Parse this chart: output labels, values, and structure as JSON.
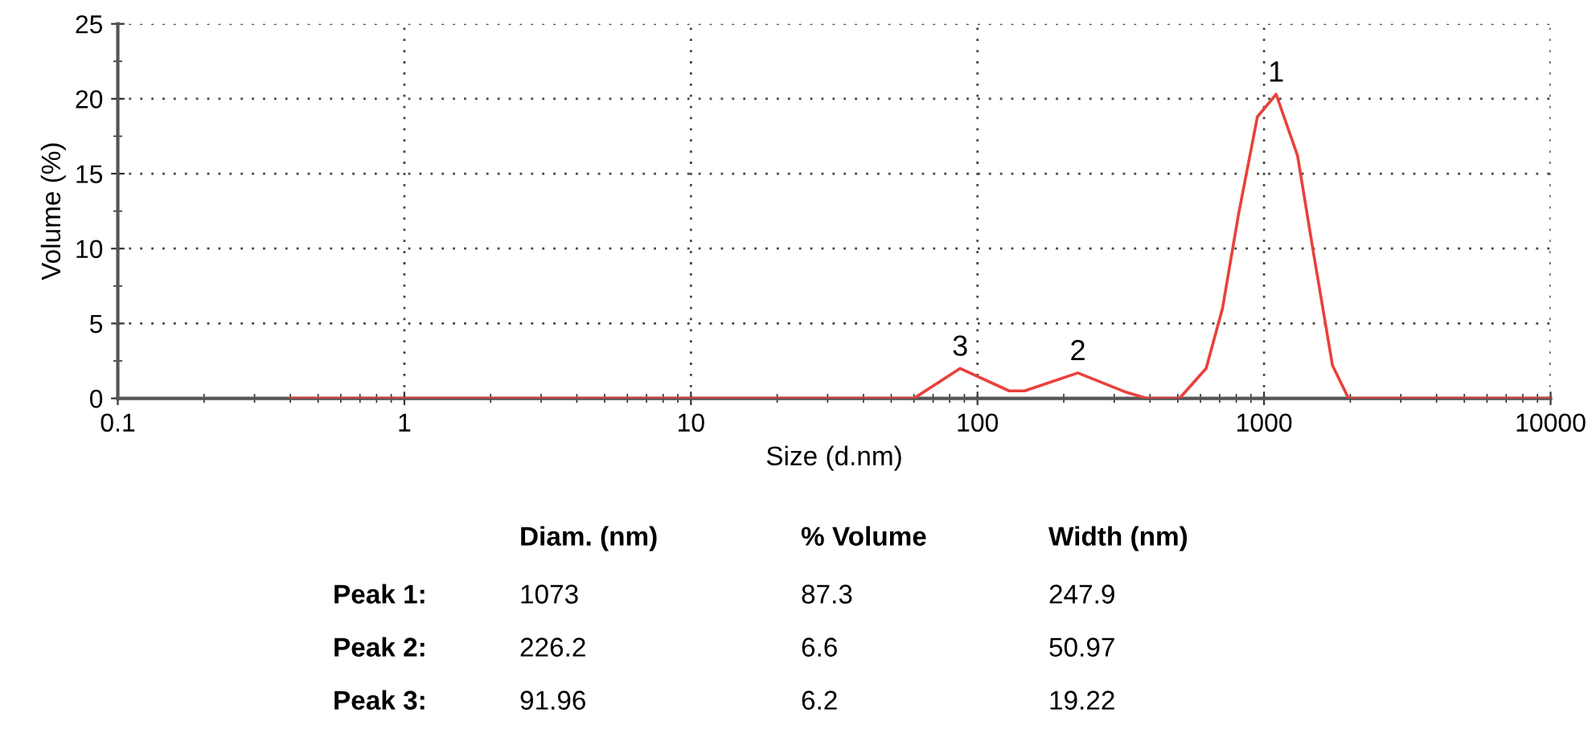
{
  "chart_data": {
    "type": "line",
    "xlabel": "Size (d.nm)",
    "ylabel": "Volume (%)",
    "x": [
      0.4,
      44.6,
      60,
      87,
      129,
      146,
      224,
      331,
      390,
      507,
      628,
      716,
      813,
      948,
      1102,
      1309,
      1488,
      1733,
      1972,
      10000
    ],
    "series": [
      {
        "color": "#e8413c",
        "values": [
          0,
          0,
          0,
          2.0,
          0.5,
          0.5,
          1.7,
          0.4,
          0,
          0,
          2.0,
          6.0,
          12.2,
          18.8,
          20.3,
          16.2,
          9.7,
          2.2,
          0,
          0
        ]
      }
    ],
    "log": "x",
    "xlim": [
      0.1,
      10000
    ],
    "ylim": [
      0,
      25
    ],
    "xticks": [
      0.1,
      1,
      10,
      100,
      1000,
      10000
    ],
    "yticks": [
      0,
      5,
      10,
      15,
      20,
      25
    ],
    "grid": true,
    "marker": "none",
    "line_style": "solid",
    "annotations": [
      {
        "text": "1",
        "x": 1102,
        "y": 20.3
      },
      {
        "text": "2",
        "x": 224,
        "y": 1.7
      },
      {
        "text": "3",
        "x": 87,
        "y": 2.0
      },
      "Diam. (nm)",
      "% Volume",
      "Width (nm)",
      "Peak 1:",
      "1073",
      "87.3",
      "247.9",
      "Peak 2:",
      "226.2",
      "6.6",
      "50.97",
      "Peak 3:",
      "91.96",
      "6.2",
      "19.22"
    ]
  }
}
